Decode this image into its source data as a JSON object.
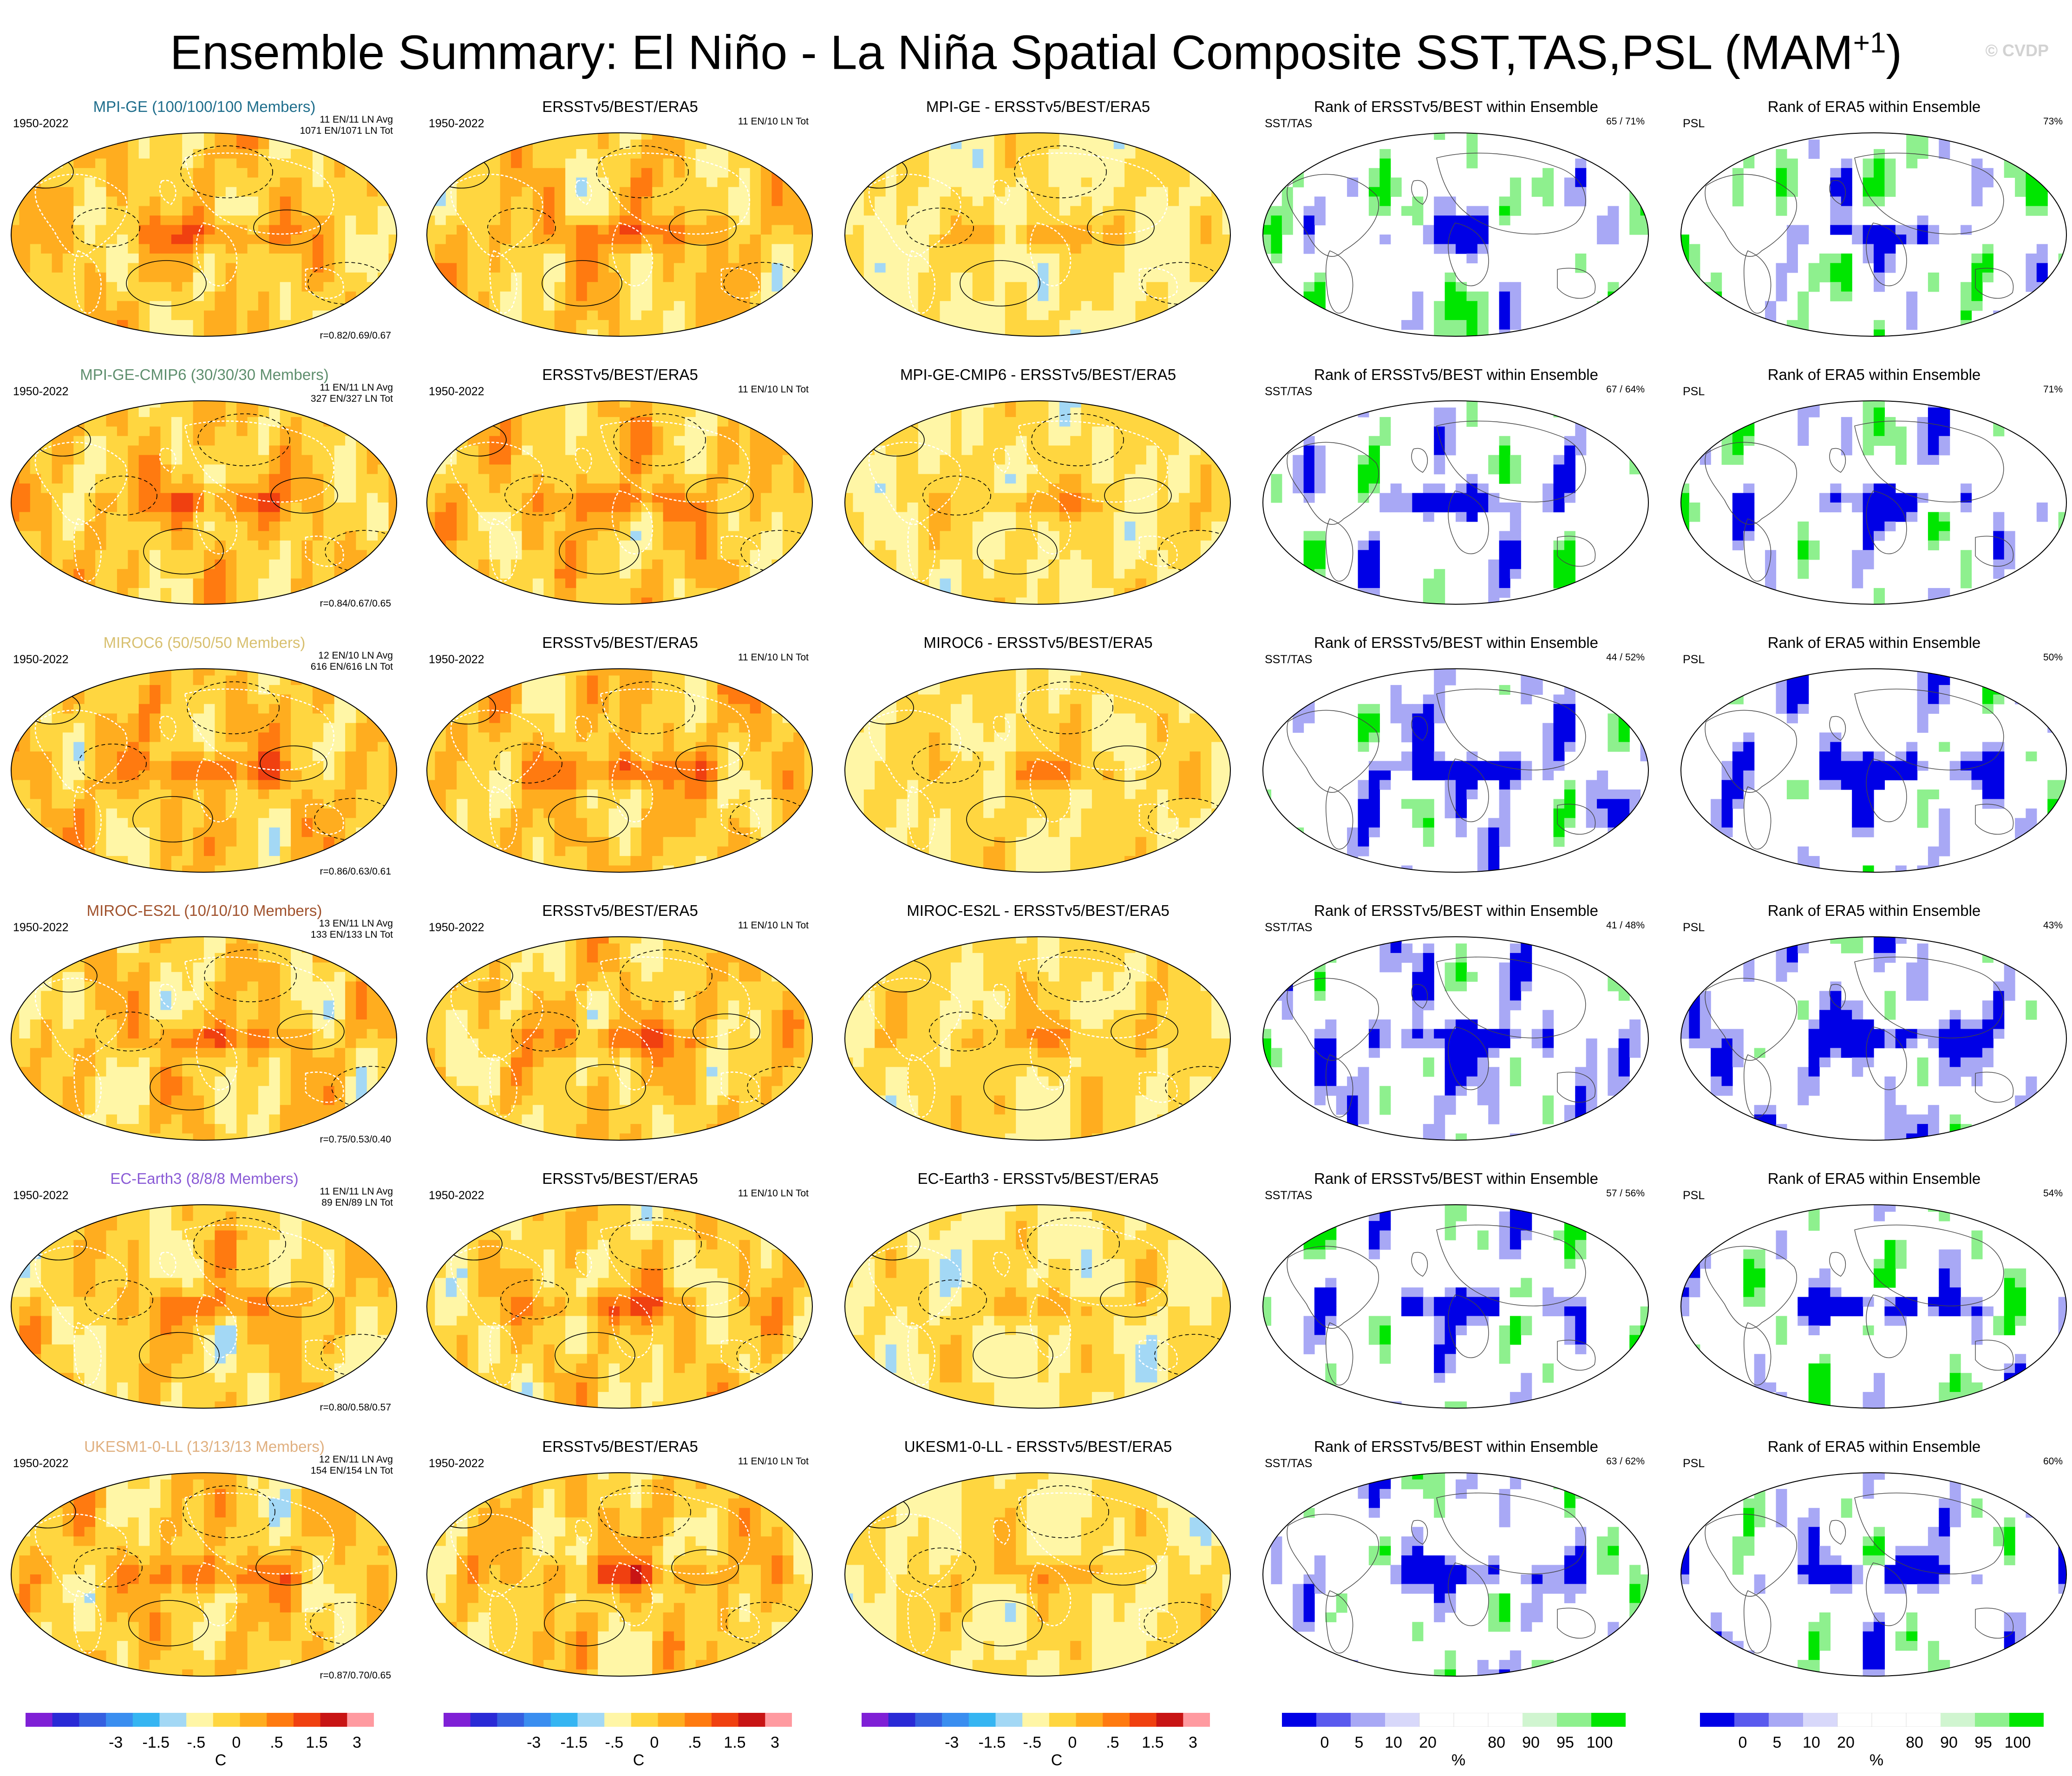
{
  "figure": {
    "title": "Ensemble Summary: El Niño - La Niña Spatial Composite SST,TAS,PSL (MAM",
    "title_superscript": "+1",
    "title_close": ")",
    "watermark": "© CVDP"
  },
  "rows": [
    {
      "model": "MPI-GE",
      "model_label": "MPI-GE (100/100/100 Members)",
      "model_color": "#1f6e8c",
      "period": "1950-2022",
      "avg": "11 EN/11 LN Avg",
      "tot": "1071 EN/1071 LN Tot",
      "corr": "r=0.82/0.69/0.67",
      "obs_period": "1950-2022",
      "obs_count": "11 EN/10 LN Tot",
      "diff_title": "MPI-GE - ERSSTv5/BEST/ERA5",
      "rank_sst": "65 /  71%",
      "rank_psl": "73%",
      "mean_level": 0.45,
      "diff_level": 0.0
    },
    {
      "model": "MPI-GE-CMIP6",
      "model_label": "MPI-GE-CMIP6 (30/30/30 Members)",
      "model_color": "#5f8f6e",
      "period": "1950-2022",
      "avg": "11 EN/11 LN Avg",
      "tot": "327 EN/327 LN Tot",
      "corr": "r=0.84/0.67/0.65",
      "obs_period": "1950-2022",
      "obs_count": "11 EN/10 LN Tot",
      "diff_title": "MPI-GE-CMIP6 - ERSSTv5/BEST/ERA5",
      "rank_sst": "67 /  64%",
      "rank_psl": "71%",
      "mean_level": 0.5,
      "diff_level": 0.1
    },
    {
      "model": "MIROC6",
      "model_label": "MIROC6 (50/50/50 Members)",
      "model_color": "#d8c070",
      "period": "1950-2022",
      "avg": "12 EN/10 LN Avg",
      "tot": "616 EN/616 LN Tot",
      "corr": "r=0.86/0.63/0.61",
      "obs_period": "1950-2022",
      "obs_count": "11 EN/10 LN Tot",
      "diff_title": "MIROC6 - ERSSTv5/BEST/ERA5",
      "rank_sst": "44 /  52%",
      "rank_psl": "50%",
      "mean_level": 0.55,
      "diff_level": 0.2
    },
    {
      "model": "MIROC-ES2L",
      "model_label": "MIROC-ES2L (10/10/10 Members)",
      "model_color": "#a0522d",
      "period": "1950-2022",
      "avg": "13 EN/11 LN Avg",
      "tot": "133 EN/133 LN Tot",
      "corr": "r=0.75/0.53/0.40",
      "obs_period": "1950-2022",
      "obs_count": "11 EN/10 LN Tot",
      "diff_title": "MIROC-ES2L - ERSSTv5/BEST/ERA5",
      "rank_sst": "41 /  48%",
      "rank_psl": "43%",
      "mean_level": 0.4,
      "diff_level": 0.25
    },
    {
      "model": "EC-Earth3",
      "model_label": "EC-Earth3 (8/8/8 Members)",
      "model_color": "#8a5bd6",
      "period": "1950-2022",
      "avg": "11 EN/11 LN Avg",
      "tot": "89 EN/89 LN Tot",
      "corr": "r=0.80/0.58/0.57",
      "obs_period": "1950-2022",
      "obs_count": "11 EN/10 LN Tot",
      "diff_title": "EC-Earth3 - ERSSTv5/BEST/ERA5",
      "rank_sst": "57 /  56%",
      "rank_psl": "54%",
      "mean_level": 0.35,
      "diff_level": 0.05
    },
    {
      "model": "UKESM1-0-LL",
      "model_label": "UKESM1-0-LL (13/13/13 Members)",
      "model_color": "#e0b080",
      "period": "1950-2022",
      "avg": "12 EN/11 LN Avg",
      "tot": "154 EN/154 LN Tot",
      "corr": "r=0.87/0.70/0.65",
      "obs_period": "1950-2022",
      "obs_count": "11 EN/10 LN Tot",
      "diff_title": "UKESM1-0-LL - ERSSTv5/BEST/ERA5",
      "rank_sst": "63 /  62%",
      "rank_psl": "60%",
      "mean_level": 0.45,
      "diff_level": 0.1
    }
  ],
  "columns": {
    "obs_title": "ERSSTv5/BEST/ERA5",
    "rank_sst_title": "Rank of ERSSTv5/BEST within Ensemble",
    "rank_sst_left": "SST/TAS",
    "rank_psl_title": "Rank of ERA5 within Ensemble",
    "rank_psl_left": "PSL"
  },
  "colorbars": {
    "temperature": {
      "unit": "C",
      "labels": [
        "-3",
        "-1.5",
        "-.5",
        "0",
        ".5",
        "1.5",
        "3"
      ],
      "colors": [
        "#7f20d6",
        "#2a2ad6",
        "#3560e0",
        "#3a8ef0",
        "#35b5f2",
        "#a3d8f5",
        "#fff6a6",
        "#ffd640",
        "#ffad1f",
        "#ff7a10",
        "#f04010",
        "#c81414",
        "#ff9aa0"
      ]
    },
    "rank": {
      "unit": "%",
      "labels": [
        "0",
        "5",
        "10",
        "20",
        "80",
        "90",
        "95",
        "100"
      ],
      "colors": [
        "#0000e6",
        "#5a5aee",
        "#a8a8f5",
        "#d8d8fa",
        "#ffffff",
        "#ffffff",
        "#ffffff",
        "#d0f5d0",
        "#8ef08e",
        "#00e600"
      ]
    }
  }
}
